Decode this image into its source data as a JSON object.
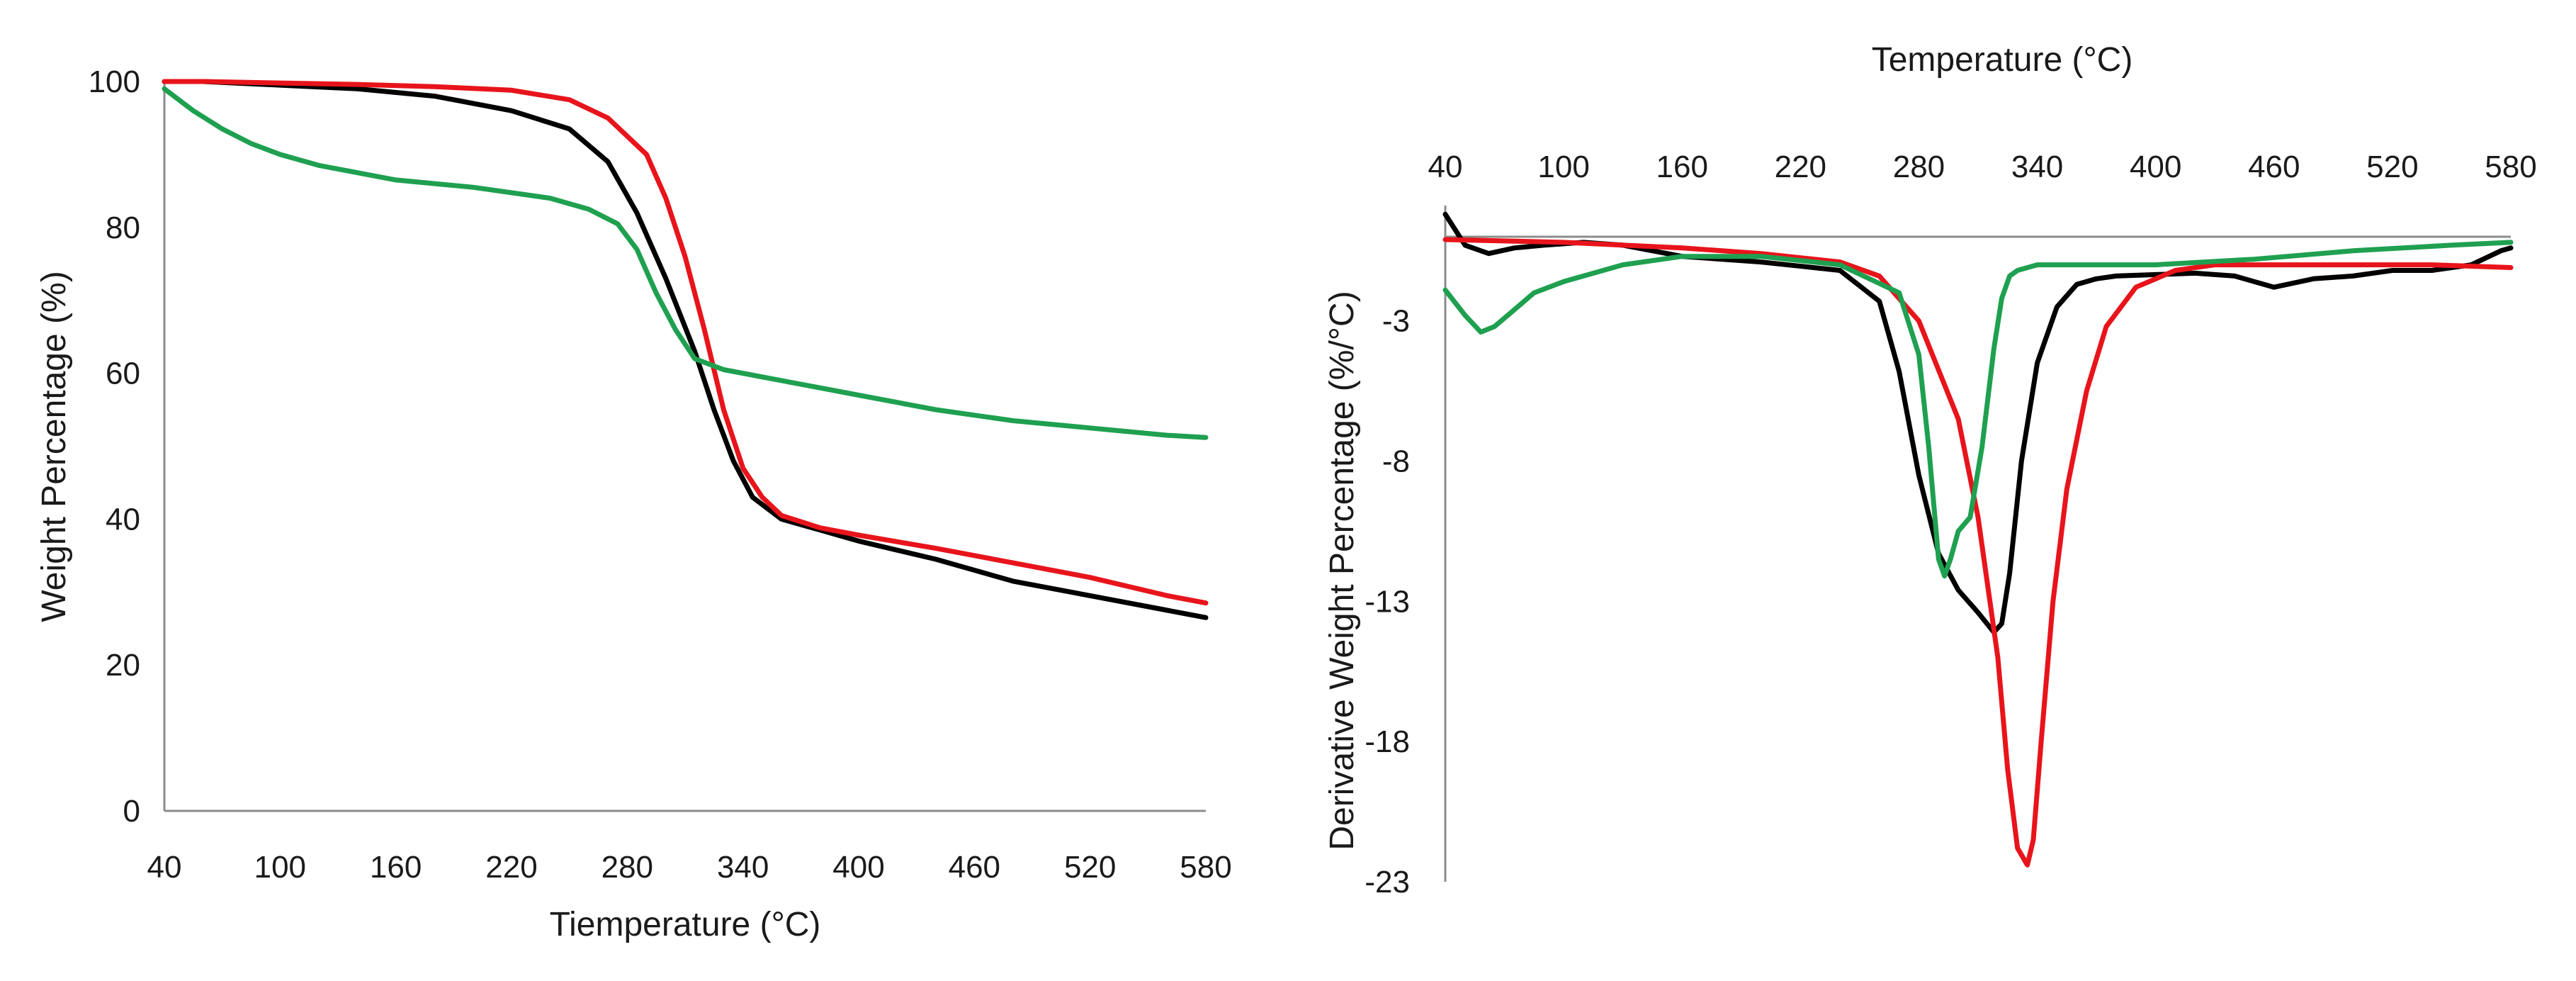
{
  "colors": {
    "black": "#000000",
    "red": "#e8141b",
    "green": "#1fa050",
    "axis": "#8c8c8c"
  },
  "chart_data": [
    {
      "type": "line",
      "title": "",
      "xlabel": "Tiemperature (°C)",
      "ylabel": "Weight Percentage (%)",
      "xlim": [
        40,
        580
      ],
      "ylim": [
        0,
        100
      ],
      "xticks": [
        "40",
        "100",
        "160",
        "220",
        "280",
        "340",
        "400",
        "460",
        "520",
        "580"
      ],
      "yticks": [
        "0",
        "20",
        "40",
        "60",
        "80",
        "100"
      ],
      "grid": false,
      "legend": "none",
      "series": [
        {
          "name": "black",
          "color": "#000000",
          "x": [
            40,
            60,
            100,
            140,
            180,
            220,
            250,
            270,
            285,
            300,
            315,
            325,
            335,
            345,
            360,
            380,
            400,
            440,
            480,
            520,
            560,
            580
          ],
          "y": [
            100,
            100,
            99.5,
            99,
            98,
            96,
            93.5,
            89,
            82,
            73,
            63,
            55,
            48,
            43,
            40,
            38.5,
            37,
            34.5,
            31.5,
            29.5,
            27.5,
            26.5
          ]
        },
        {
          "name": "red",
          "color": "#e8141b",
          "x": [
            40,
            60,
            100,
            140,
            180,
            220,
            250,
            270,
            290,
            300,
            310,
            320,
            330,
            340,
            350,
            360,
            380,
            400,
            440,
            480,
            520,
            560,
            580
          ],
          "y": [
            100,
            100,
            99.8,
            99.6,
            99.3,
            98.8,
            97.5,
            95,
            90,
            84,
            76,
            66,
            55,
            47,
            43,
            40.5,
            38.8,
            37.8,
            36,
            34,
            32,
            29.5,
            28.5
          ]
        },
        {
          "name": "green",
          "color": "#1fa050",
          "x": [
            40,
            55,
            70,
            85,
            100,
            120,
            140,
            160,
            200,
            240,
            260,
            275,
            285,
            295,
            305,
            315,
            330,
            360,
            400,
            440,
            480,
            520,
            560,
            580
          ],
          "y": [
            99,
            96,
            93.5,
            91.5,
            90,
            88.5,
            87.5,
            86.5,
            85.5,
            84,
            82.5,
            80.5,
            77,
            71,
            66,
            62,
            60.5,
            59,
            57,
            55,
            53.5,
            52.5,
            51.5,
            51.2
          ]
        }
      ]
    },
    {
      "type": "line",
      "title": "",
      "xlabel": "Temperature (°C)",
      "ylabel": "Derivative Weight Percentage (%/°C)",
      "xlim": [
        40,
        580
      ],
      "ylim": [
        -23,
        2
      ],
      "xaxis_position": "top",
      "xticks": [
        "40",
        "100",
        "160",
        "220",
        "280",
        "340",
        "400",
        "460",
        "520",
        "580"
      ],
      "yticks": [
        "-3",
        "-8",
        "-13",
        "-18",
        "-23"
      ],
      "grid": false,
      "legend": "none",
      "series": [
        {
          "name": "black",
          "color": "#000000",
          "x": [
            40,
            50,
            62,
            75,
            90,
            110,
            130,
            160,
            200,
            240,
            260,
            270,
            280,
            290,
            300,
            310,
            318,
            322,
            326,
            332,
            340,
            350,
            360,
            370,
            380,
            400,
            420,
            440,
            460,
            480,
            500,
            520,
            540,
            560,
            575,
            580
          ],
          "y": [
            0.8,
            -0.3,
            -0.6,
            -0.4,
            -0.3,
            -0.2,
            -0.3,
            -0.7,
            -0.9,
            -1.2,
            -2.3,
            -4.8,
            -8.5,
            -11.3,
            -12.6,
            -13.4,
            -14.1,
            -13.8,
            -12,
            -8,
            -4.5,
            -2.5,
            -1.7,
            -1.5,
            -1.4,
            -1.35,
            -1.3,
            -1.4,
            -1.8,
            -1.5,
            -1.4,
            -1.2,
            -1.2,
            -1.0,
            -0.5,
            -0.4
          ]
        },
        {
          "name": "red",
          "color": "#e8141b",
          "x": [
            40,
            100,
            160,
            200,
            240,
            260,
            280,
            300,
            310,
            320,
            325,
            330,
            335,
            338,
            342,
            348,
            355,
            365,
            375,
            390,
            410,
            430,
            460,
            500,
            540,
            580
          ],
          "y": [
            -0.1,
            -0.2,
            -0.4,
            -0.6,
            -0.9,
            -1.4,
            -3,
            -6.5,
            -10,
            -15,
            -19,
            -21.8,
            -22.4,
            -21.5,
            -18,
            -13,
            -9,
            -5.5,
            -3.2,
            -1.8,
            -1.2,
            -1.0,
            -1.0,
            -1.0,
            -1.0,
            -1.1
          ]
        },
        {
          "name": "green",
          "color": "#1fa050",
          "x": [
            40,
            50,
            58,
            65,
            75,
            85,
            100,
            130,
            160,
            200,
            240,
            270,
            280,
            285,
            290,
            293,
            296,
            300,
            306,
            312,
            318,
            322,
            326,
            330,
            340,
            360,
            400,
            450,
            500,
            550,
            580
          ],
          "y": [
            -1.9,
            -2.8,
            -3.4,
            -3.2,
            -2.6,
            -2.0,
            -1.6,
            -1.0,
            -0.7,
            -0.7,
            -1.0,
            -2.0,
            -4.2,
            -7.5,
            -11.5,
            -12.1,
            -11.5,
            -10.5,
            -10.0,
            -7.5,
            -4.0,
            -2.2,
            -1.4,
            -1.2,
            -1.0,
            -1.0,
            -1.0,
            -0.8,
            -0.5,
            -0.3,
            -0.2
          ]
        }
      ]
    }
  ]
}
